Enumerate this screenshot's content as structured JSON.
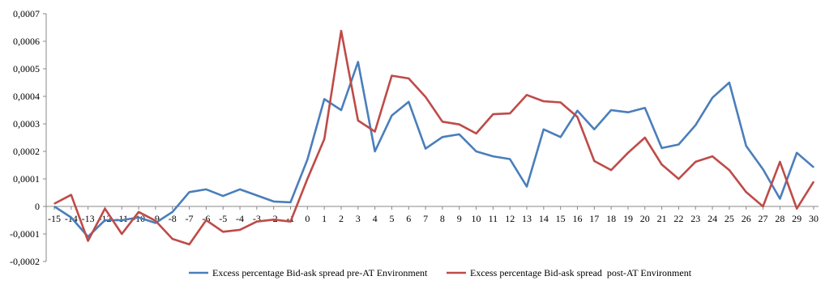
{
  "chart_data": {
    "type": "line",
    "title": "",
    "xlabel": "",
    "ylabel": "",
    "categories": [
      "-15",
      "-14",
      "-13",
      "-12",
      "-11",
      "-10",
      "-9",
      "-8",
      "-7",
      "-6",
      "-5",
      "-4",
      "-3",
      "-2",
      "-1",
      "0",
      "1",
      "2",
      "3",
      "4",
      "5",
      "6",
      "7",
      "8",
      "9",
      "10",
      "11",
      "12",
      "13",
      "14",
      "15",
      "16",
      "17",
      "18",
      "19",
      "20",
      "21",
      "22",
      "23",
      "24",
      "25",
      "26",
      "27",
      "28",
      "29",
      "30"
    ],
    "ylim": [
      -0.0002,
      0.0007
    ],
    "yticks": [
      -0.0002,
      -0.0001,
      0,
      0.0001,
      0.0002,
      0.0003,
      0.0004,
      0.0005,
      0.0006,
      0.0007
    ],
    "ytick_labels": [
      "-0,0002",
      "-0,0001",
      "0",
      "0,0001",
      "0,0002",
      "0,0003",
      "0,0004",
      "0,0005",
      "0,0006",
      "0,0007"
    ],
    "grid": false,
    "legend_position": "bottom",
    "series": [
      {
        "name": "Excess percentage Bid-ask spread pre-AT Environment",
        "color": "#4a7ebb",
        "values": [
          0.0,
          -4e-05,
          -0.00011,
          -5e-05,
          -5e-05,
          -4e-05,
          -6e-05,
          -2e-05,
          5.2e-05,
          6.2e-05,
          3.8e-05,
          6.2e-05,
          4e-05,
          1.8e-05,
          1.5e-05,
          0.00017,
          0.00039,
          0.00035,
          0.000525,
          0.0002,
          0.00033,
          0.00038,
          0.00021,
          0.000252,
          0.000262,
          0.0002,
          0.000182,
          0.000172,
          7.2e-05,
          0.00028,
          0.000252,
          0.000348,
          0.00028,
          0.00035,
          0.000342,
          0.000358,
          0.000212,
          0.000225,
          0.000295,
          0.000395,
          0.00045,
          0.00022,
          0.000135,
          2.8e-05,
          0.000195,
          0.000142
        ]
      },
      {
        "name": "Excess percentage Bid-ask spread  post-AT Environment",
        "color": "#be4b48",
        "values": [
          1e-05,
          4.2e-05,
          -0.000125,
          -8e-06,
          -0.0001,
          -2e-05,
          -5.2e-05,
          -0.000118,
          -0.000138,
          -5e-05,
          -9.2e-05,
          -8.5e-05,
          -5.5e-05,
          -4.8e-05,
          -5.5e-05,
          0.0001,
          0.000245,
          0.000638,
          0.000312,
          0.000272,
          0.000475,
          0.000465,
          0.000398,
          0.000308,
          0.000298,
          0.000265,
          0.000335,
          0.000338,
          0.000405,
          0.000382,
          0.000378,
          0.000325,
          0.000165,
          0.000132,
          0.000195,
          0.00025,
          0.000152,
          0.0001,
          0.000162,
          0.000182,
          0.000132,
          5.2e-05,
          0.0,
          0.000162,
          -8e-06,
          9e-05
        ]
      }
    ]
  }
}
